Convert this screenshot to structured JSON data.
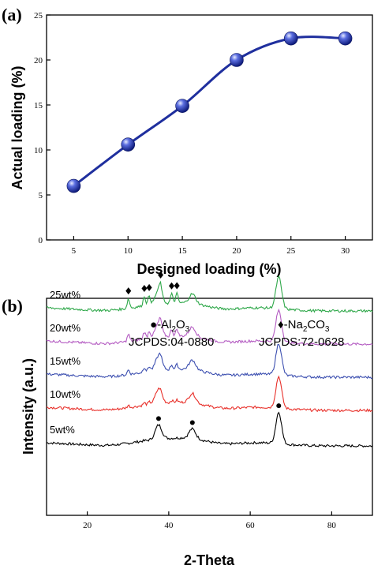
{
  "chart_data": [
    {
      "type": "line",
      "panel_label": "(a)",
      "xlabel": "Designed loading (%)",
      "ylabel": "Actual loading (%)",
      "xlim": [
        2.5,
        32.5
      ],
      "ylim": [
        0,
        25
      ],
      "xticks": [
        5,
        10,
        15,
        20,
        25,
        30
      ],
      "yticks": [
        0,
        5,
        10,
        15,
        20,
        25
      ],
      "x": [
        5,
        10,
        15,
        20,
        25,
        30
      ],
      "values": [
        6.0,
        10.6,
        14.9,
        20.0,
        22.4,
        22.4
      ],
      "marker": "sphere",
      "line_color": "#1f2f9e",
      "marker_color": "#3344c8"
    },
    {
      "type": "line",
      "panel_label": "(b)",
      "xlabel": "2-Theta",
      "ylabel": "Intensity (a.u.)",
      "xlim": [
        10,
        90
      ],
      "xticks": [
        20,
        40,
        60,
        80
      ],
      "series": [
        {
          "name": "5wt%",
          "color": "#000000",
          "baseline": 565
        },
        {
          "name": "10wt%",
          "color": "#e8302a",
          "baseline": 520
        },
        {
          "name": "15wt%",
          "color": "#3c4fb0",
          "baseline": 478
        },
        {
          "name": "20wt%",
          "color": "#b45cc2",
          "baseline": 436
        },
        {
          "name": "25wt%",
          "color": "#2fa84a",
          "baseline": 394
        }
      ],
      "legend_al2o3": {
        "symbol": "●",
        "prefix": "-Al",
        "sub1": "2",
        "mid": "O",
        "sub2": "3",
        "card": "JCPDS:04-0880"
      },
      "legend_na2co3": {
        "symbol": "♦",
        "prefix": "-Na",
        "sub1": "2",
        "mid": "CO",
        "sub2": "3",
        "card": "JCPDS:72-0628"
      },
      "al2o3_peaks": [
        37.5,
        45.8,
        67.0
      ],
      "na2co3_peaks": [
        30.1,
        34.0,
        35.2,
        38.0,
        40.7,
        42.0
      ]
    }
  ]
}
